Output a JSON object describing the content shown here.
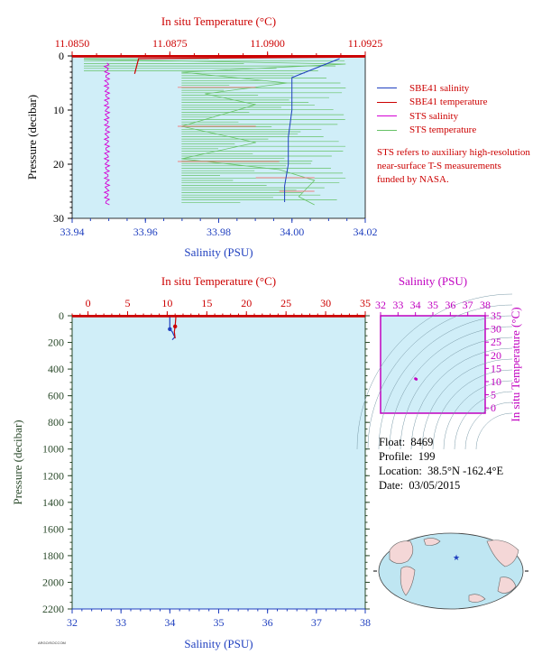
{
  "legend": {
    "items": [
      {
        "label": "SBE41 salinity",
        "color": "#1f3fbf"
      },
      {
        "label": "SBE41 temperature",
        "color": "#cc0000"
      },
      {
        "label": "STS salinity",
        "color": "#d400d4"
      },
      {
        "label": "STS temperature",
        "color": "#66c266"
      }
    ]
  },
  "note": "STS refers to auxiliary high-resolution near-surface T-S measurements funded by NASA.",
  "info": {
    "float_label": "Float:",
    "float_value": "8469",
    "profile_label": "Profile:",
    "profile_value": "199",
    "location_label": "Location:",
    "location_value": "38.5°N  -162.4°E",
    "date_label": "Date:",
    "date_value": "03/05/2015"
  },
  "footnote": "ARGO/SOCCOM",
  "colors": {
    "plot_bg": "#d0eef8",
    "temperature": "#cc0000",
    "salinity": "#1f3fbf",
    "sts_salinity": "#d400d4",
    "sts_temperature": "#66c266",
    "pressure_axis": "#2b4a2b",
    "ts_axis": "#c000c0"
  },
  "chart_data": [
    {
      "type": "line",
      "name": "near-surface profile",
      "title": "",
      "top_axis": {
        "label": "In situ Temperature (°C)",
        "range": [
          11.085,
          11.0925
        ],
        "ticks": [
          "11.0850",
          "11.0875",
          "11.0900",
          "11.0925"
        ]
      },
      "bottom_axis": {
        "label": "Salinity (PSU)",
        "range": [
          33.94,
          34.02
        ],
        "ticks": [
          "33.94",
          "33.96",
          "33.98",
          "34.00",
          "34.02"
        ]
      },
      "left_axis": {
        "label": "Pressure (decibar)",
        "range": [
          0,
          30
        ],
        "inverted": true,
        "ticks": [
          "0",
          "10",
          "20",
          "30"
        ]
      },
      "series": [
        {
          "name": "SBE41 salinity",
          "axis": "salinity",
          "points": [
            [
              34.013,
              0.5
            ],
            [
              34.0,
              4
            ],
            [
              34.0,
              10
            ],
            [
              33.999,
              15
            ],
            [
              33.999,
              20
            ],
            [
              33.998,
              24
            ],
            [
              33.998,
              27
            ]
          ]
        },
        {
          "name": "SBE41 temperature",
          "axis": "temperature",
          "points": [
            [
              11.0925,
              0.2
            ],
            [
              11.0867,
              0.5
            ],
            [
              11.0866,
              3.3
            ]
          ]
        },
        {
          "name": "STS salinity",
          "axis": "salinity",
          "points": [
            [
              33.949,
              1.3
            ],
            [
              33.948,
              3.5
            ],
            [
              33.95,
              5
            ],
            [
              33.949,
              8
            ],
            [
              33.95,
              12
            ],
            [
              33.949,
              16
            ],
            [
              33.95,
              20
            ],
            [
              33.949,
              24
            ],
            [
              33.95,
              27.5
            ]
          ]
        },
        {
          "name": "STS temperature",
          "axis": "temperature",
          "points": [
            [
              11.0853,
              0.6
            ],
            [
              11.092,
              1.5
            ],
            [
              11.0878,
              3
            ],
            [
              11.0905,
              5
            ],
            [
              11.0884,
              7
            ],
            [
              11.0897,
              9
            ],
            [
              11.0878,
              13
            ],
            [
              11.0897,
              16
            ],
            [
              11.0878,
              19
            ],
            [
              11.0903,
              21
            ],
            [
              11.0912,
              23
            ],
            [
              11.0908,
              26
            ],
            [
              11.0912,
              27.5
            ]
          ]
        }
      ]
    },
    {
      "type": "line",
      "name": "full profile",
      "title": "",
      "top_axis": {
        "label": "In situ Temperature (°C)",
        "range": [
          -2,
          35
        ],
        "ticks": [
          "0",
          "5",
          "10",
          "15",
          "20",
          "25",
          "30",
          "35"
        ]
      },
      "bottom_axis": {
        "label": "Salinity (PSU)",
        "range": [
          32,
          38
        ],
        "ticks": [
          "32",
          "33",
          "34",
          "35",
          "36",
          "37",
          "38"
        ]
      },
      "left_axis": {
        "label": "Pressure (decibar)",
        "range": [
          0,
          2200
        ],
        "inverted": true,
        "ticks": [
          "0",
          "200",
          "400",
          "600",
          "800",
          "1000",
          "1200",
          "1400",
          "1600",
          "1800",
          "2000",
          "2200"
        ]
      },
      "series": [
        {
          "name": "SBE41 salinity",
          "axis": "salinity",
          "points": [
            [
              34.0,
              0
            ],
            [
              34.0,
              100
            ],
            [
              34.05,
              120
            ],
            [
              34.1,
              160
            ],
            [
              34.05,
              180
            ]
          ]
        },
        {
          "name": "SBE41 temperature",
          "axis": "temperature",
          "points": [
            [
              11.1,
              0
            ],
            [
              11.0,
              80
            ],
            [
              10.9,
              120
            ],
            [
              11.0,
              170
            ]
          ]
        }
      ]
    },
    {
      "type": "scatter",
      "name": "T-S diagram",
      "title": "",
      "top_axis": {
        "label": "Salinity (PSU)",
        "range": [
          32,
          38
        ],
        "ticks": [
          "32",
          "33",
          "34",
          "35",
          "36",
          "37",
          "38"
        ]
      },
      "right_axis": {
        "label": "In situ Temperature (°C)",
        "range": [
          -2,
          35
        ],
        "ticks": [
          "0",
          "5",
          "10",
          "15",
          "20",
          "25",
          "30",
          "35"
        ]
      },
      "series": [
        {
          "name": "profile",
          "points": [
            [
              34.0,
              11.1
            ],
            [
              34.05,
              10.9
            ]
          ]
        }
      ]
    }
  ]
}
